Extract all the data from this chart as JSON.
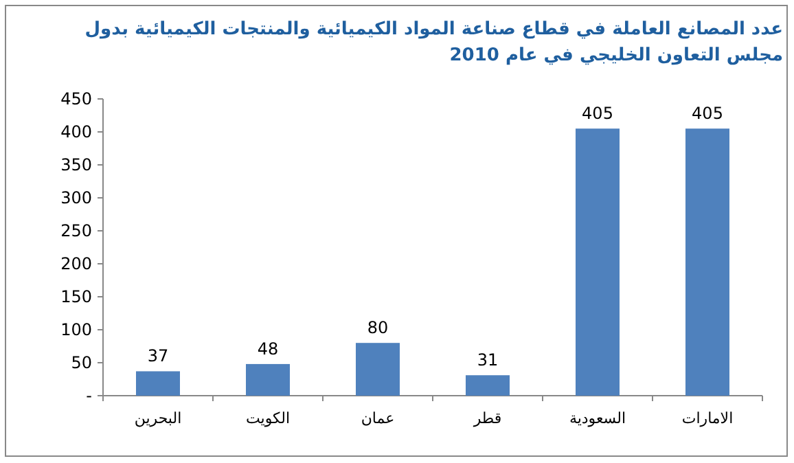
{
  "chart_data": {
    "type": "bar",
    "title": "عدد المصانع العاملة في قطاع صناعة المواد الكيميائية والمنتجات الكيميائية بدول مجلس التعاون الخليجي في عام  2010",
    "categories": [
      "البحرين",
      "الكويت",
      "عمان",
      "قطر",
      "السعودية",
      "الامارات"
    ],
    "values": [
      37,
      48,
      80,
      31,
      405,
      405
    ],
    "color": "#4f81bd",
    "ylim": [
      0,
      450
    ],
    "yticks": [
      {
        "value": 0,
        "label": "-"
      },
      50,
      100,
      150,
      200,
      250,
      300,
      350,
      400,
      450
    ],
    "data_labels": true,
    "grid": false
  }
}
